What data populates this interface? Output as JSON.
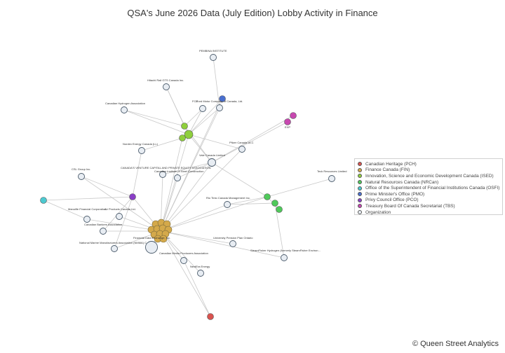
{
  "title": "QSA's June 2026 Data (July Edition) Lobby Activity in Finance",
  "watermark": "© Queen Street Analytics",
  "legend": [
    {
      "label": "Canadian Heritage (PCH)",
      "color": "#d9534f"
    },
    {
      "label": "Finance Canada (FIN)",
      "color": "#d4a94a"
    },
    {
      "label": "Innovation, Science and Economic Development Canada (ISED)",
      "color": "#8fcf3c"
    },
    {
      "label": "Natural Resources Canada (NRCan)",
      "color": "#4fc95a"
    },
    {
      "label": "Office of the Superintendent of Financial Institutions Canada (OSFI)",
      "color": "#4cc9d0"
    },
    {
      "label": "Prime Minister's Office (PMO)",
      "color": "#4a6fcf"
    },
    {
      "label": "Privy Council Office (PCO)",
      "color": "#8a3fc7"
    },
    {
      "label": "Treasury Board Of Canada Secretariat (TBS)",
      "color": "#c748b0"
    },
    {
      "label": "Organization",
      "color": "#e8edf3"
    }
  ],
  "nodes": [
    {
      "id": "pembina",
      "label": "PEMBINA INSTITUTE",
      "group": "Organization"
    },
    {
      "id": "hitachi",
      "label": "Hitachi Rail GTS Canada Inc.",
      "group": "Organization"
    },
    {
      "id": "pmo",
      "label": "",
      "group": "PMO"
    },
    {
      "id": "ford",
      "label": "Ford Motor Company of Canada, Ltd.",
      "group": "Organization"
    },
    {
      "id": "fcd",
      "label": "FCD",
      "group": "Organization"
    },
    {
      "id": "tbs1",
      "label": "",
      "group": "TBS"
    },
    {
      "id": "tbs2",
      "label": "EXP",
      "group": "TBS"
    },
    {
      "id": "cha",
      "label": "Canadian Hydrogen Association",
      "group": "Organization"
    },
    {
      "id": "ised1",
      "label": "",
      "group": "ISED"
    },
    {
      "id": "ised2",
      "label": "",
      "group": "ISED"
    },
    {
      "id": "ised3",
      "label": "",
      "group": "ISED"
    },
    {
      "id": "nordex",
      "label": "Nordex Energy Canada (LL)",
      "group": "Organization"
    },
    {
      "id": "pfizer",
      "label": "Pfizer Canada ULC",
      "group": "Organization"
    },
    {
      "id": "vale",
      "label": "Vale Canada Limited",
      "group": "Organization"
    },
    {
      "id": "cvca",
      "label": "CANADA'S VENTURE CAPITAL AND PRIVATE EQUITY ASSOCIATION",
      "group": "Organization"
    },
    {
      "id": "ciac",
      "label": "Canadian Institute of Steel Construction",
      "group": "Organization"
    },
    {
      "id": "csl",
      "label": "CSL Group Inc.",
      "group": "Organization"
    },
    {
      "id": "teck",
      "label": "Teck Resources Limited",
      "group": "Organization"
    },
    {
      "id": "osfi",
      "label": "",
      "group": "OSFI"
    },
    {
      "id": "pco",
      "label": "",
      "group": "PCO"
    },
    {
      "id": "riotinto",
      "label": "Rio Tinto Canada Management Inc.",
      "group": "Organization"
    },
    {
      "id": "nrcan1",
      "label": "",
      "group": "NRCan"
    },
    {
      "id": "nrcan2",
      "label": "",
      "group": "NRCan"
    },
    {
      "id": "nrcan3",
      "label": "",
      "group": "NRCan"
    },
    {
      "id": "manulife",
      "label": "Manulife Financial Corporation",
      "group": "Organization"
    },
    {
      "id": "airprod",
      "label": "Air Products Canada Ltd.",
      "group": "Organization"
    },
    {
      "id": "cba",
      "label": "Canadian Bankers Association",
      "group": "Organization"
    },
    {
      "id": "nmma",
      "label": "National Marine Manufacturers Association (NMMA) C",
      "group": "Organization"
    },
    {
      "id": "fde",
      "label": "Financial Data Exchange, Inc.",
      "group": "Organization"
    },
    {
      "id": "upo",
      "label": "University Pension Plan Ontario",
      "group": "Organization"
    },
    {
      "id": "steam",
      "label": "SteamFisher Hydrogen (formerly SteamFisher Environ...",
      "group": "Organization"
    },
    {
      "id": "cmpa",
      "label": "Canadian Media Producers Association",
      "group": "Organization"
    },
    {
      "id": "nextbio",
      "label": "NextEra Energy",
      "group": "Organization"
    },
    {
      "id": "pch",
      "label": "",
      "group": "PCH"
    }
  ]
}
